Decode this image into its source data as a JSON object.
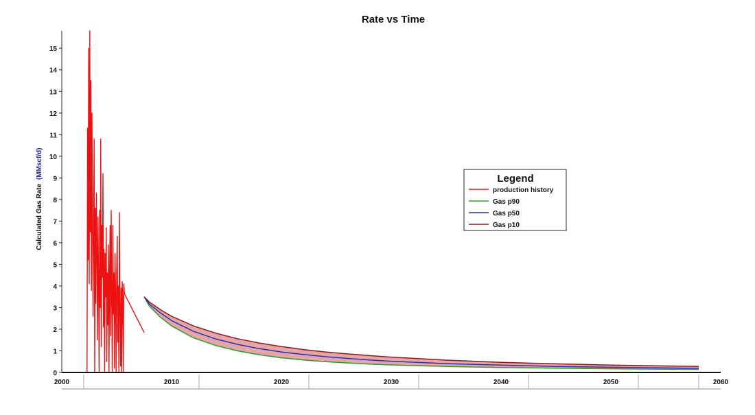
{
  "chart_data": {
    "type": "line",
    "title": "Rate vs Time",
    "ylabel_main": "Calculated Gas Rate",
    "ylabel_unit": "(MMscf/d)",
    "xlabel": "",
    "xlim": [
      2000,
      2060
    ],
    "ylim": [
      0,
      15.8
    ],
    "yticks": [
      0,
      1,
      2,
      3,
      4,
      5,
      6,
      7,
      8,
      9,
      10,
      11,
      12,
      13,
      14,
      15
    ],
    "xticks": [
      2000,
      2010,
      2020,
      2030,
      2040,
      2050,
      2060
    ],
    "legend": {
      "title": "Legend",
      "entries": [
        "production history",
        "Gas p90",
        "Gas p50",
        "Gas p10"
      ]
    },
    "colors": {
      "production history": "#ee1111",
      "Gas p90": "#2e9a2e",
      "Gas p50": "#3030a8",
      "Gas p10": "#8b1a1a",
      "band": "#d9898c"
    },
    "series": [
      {
        "name": "production history",
        "x": [
          2002.3,
          2002.35,
          2002.4,
          2002.45,
          2002.5,
          2002.55,
          2002.6,
          2002.65,
          2002.7,
          2002.75,
          2002.8,
          2002.85,
          2002.9,
          2002.95,
          2003.0,
          2003.05,
          2003.1,
          2003.15,
          2003.2,
          2003.25,
          2003.3,
          2003.35,
          2003.4,
          2003.45,
          2003.5,
          2003.55,
          2003.6,
          2003.65,
          2003.7,
          2003.75,
          2003.8,
          2003.85,
          2003.9,
          2003.95,
          2004.0,
          2004.05,
          2004.1,
          2004.15,
          2004.2,
          2004.25,
          2004.3,
          2004.35,
          2004.4,
          2004.45,
          2004.5,
          2004.55,
          2004.6,
          2004.65,
          2004.7,
          2004.75,
          2004.8,
          2004.85,
          2004.9,
          2004.95,
          2005.0,
          2005.05,
          2005.1,
          2005.15,
          2005.2,
          2005.25,
          2005.3,
          2005.35,
          2005.4,
          2005.45,
          2005.5,
          2005.55,
          2005.6,
          2005.65,
          2005.7,
          2005.75,
          2005.8,
          2005.85,
          2005.9,
          2005.95,
          2006.0,
          2006.05,
          2006.1,
          2006.15,
          2006.2,
          2006.25,
          2006.3,
          2006.35,
          2006.4,
          2006.45,
          2006.5,
          2006.55,
          2006.6,
          2006.65,
          2006.7,
          2006.75,
          2006.8,
          2006.85,
          2006.9,
          2006.95,
          2007.0,
          2007.05,
          2007.1,
          2007.15,
          2007.2,
          2007.25,
          2007.3,
          2007.35,
          2007.4,
          2007.45,
          2007.5
        ],
        "values": [
          0.0,
          11.3,
          5.2,
          15.0,
          4.1,
          15.8,
          6.5,
          13.5,
          3.8,
          12.0,
          7.0,
          2.6,
          6.8,
          10.8,
          0.0,
          7.6,
          3.2,
          8.3,
          5.8,
          1.5,
          7.2,
          4.2,
          0.0,
          7.5,
          3.0,
          10.8,
          1.2,
          6.8,
          4.4,
          9.2,
          2.1,
          5.7,
          0.0,
          5.5,
          3.5,
          6.7,
          0.5,
          4.6,
          2.2,
          5.9,
          0.0,
          4.5,
          6.8,
          1.7,
          7.5,
          3.3,
          0.0,
          6.8,
          2.7,
          4.6,
          0.2,
          5.5,
          3.8,
          0.0,
          4.6,
          6.3,
          1.4,
          4.0,
          0.0,
          7.4,
          3.1,
          0.3,
          3.9,
          0.0,
          4.2,
          3.5,
          0.0,
          4.1,
          3.7,
          3.6,
          3.55,
          3.5,
          3.45,
          3.4,
          3.35,
          3.3,
          3.25,
          3.2,
          3.15,
          3.1,
          3.05,
          3.0,
          2.95,
          2.9,
          2.85,
          2.8,
          2.75,
          2.7,
          2.65,
          2.6,
          2.55,
          2.5,
          2.45,
          2.4,
          2.35,
          2.3,
          2.25,
          2.2,
          2.15,
          2.1,
          2.05,
          2.0,
          1.95,
          1.9,
          1.85
        ]
      },
      {
        "name": "Gas p90",
        "x": [
          2007.5,
          2008,
          2009,
          2010,
          2012,
          2014,
          2016,
          2018,
          2020,
          2022,
          2024,
          2026,
          2028,
          2030,
          2035,
          2040,
          2045,
          2050,
          2055,
          2058
        ],
        "values": [
          3.5,
          3.05,
          2.55,
          2.15,
          1.6,
          1.25,
          1.0,
          0.82,
          0.68,
          0.58,
          0.5,
          0.44,
          0.39,
          0.35,
          0.28,
          0.23,
          0.2,
          0.17,
          0.15,
          0.14
        ]
      },
      {
        "name": "Gas p50",
        "x": [
          2007.5,
          2008,
          2009,
          2010,
          2012,
          2014,
          2016,
          2018,
          2020,
          2022,
          2024,
          2026,
          2028,
          2030,
          2035,
          2040,
          2045,
          2050,
          2055,
          2058
        ],
        "values": [
          3.5,
          3.15,
          2.75,
          2.4,
          1.9,
          1.55,
          1.3,
          1.1,
          0.95,
          0.83,
          0.73,
          0.65,
          0.58,
          0.52,
          0.41,
          0.34,
          0.28,
          0.24,
          0.21,
          0.19
        ]
      },
      {
        "name": "Gas p10",
        "x": [
          2007.5,
          2008,
          2009,
          2010,
          2012,
          2014,
          2016,
          2018,
          2020,
          2022,
          2024,
          2026,
          2028,
          2030,
          2035,
          2040,
          2045,
          2050,
          2055,
          2058
        ],
        "values": [
          3.5,
          3.25,
          2.9,
          2.6,
          2.15,
          1.82,
          1.56,
          1.36,
          1.2,
          1.06,
          0.95,
          0.86,
          0.78,
          0.71,
          0.57,
          0.47,
          0.4,
          0.34,
          0.3,
          0.28
        ]
      }
    ]
  }
}
